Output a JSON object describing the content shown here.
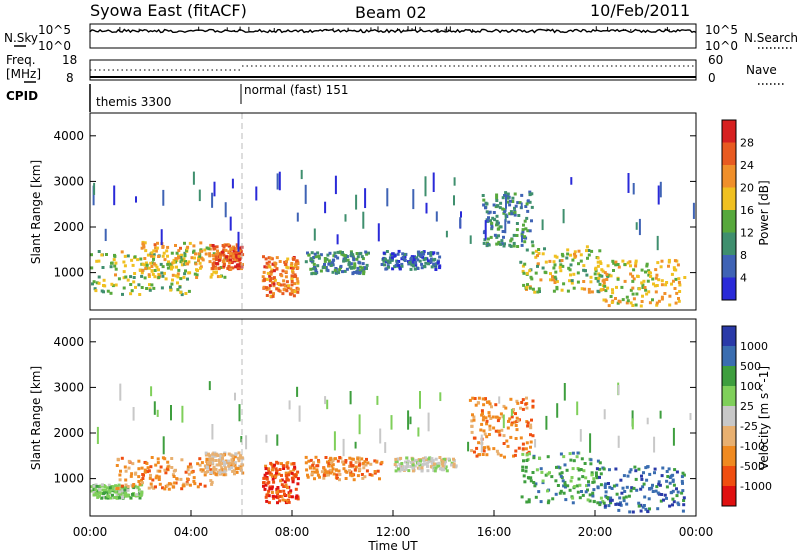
{
  "header": {
    "station": "Syowa East (fitACF)",
    "beam": "Beam 02",
    "date": "10/Feb/2011"
  },
  "noise_panel": {
    "left_label": "N.Sky",
    "right_label": "N.Search",
    "left_ticks": [
      "10^5",
      "10^0"
    ],
    "right_ticks": [
      "10^5",
      "10^0"
    ]
  },
  "freq_panel": {
    "left_label_1": "Freq.",
    "left_label_2": "[MHz]",
    "left_ticks": [
      "18",
      "8"
    ],
    "right_label": "Nave",
    "right_ticks": [
      "60",
      "0"
    ]
  },
  "cpid_panel": {
    "label": "CPID",
    "segments": [
      {
        "name": "themis 3300",
        "start_hour": 0
      },
      {
        "name": "normal (fast) 151",
        "start_hour": 6
      }
    ]
  },
  "colors": {
    "power_scale": [
      "#2a2ad8",
      "#3f63b5",
      "#3f8f6e",
      "#57a83c",
      "#f0c020",
      "#f08f2a",
      "#e85a20",
      "#d62020"
    ],
    "velocity_scale": [
      "#e01010",
      "#f04e10",
      "#f08a20",
      "#e8b070",
      "#c8c8c8",
      "#7fcf5a",
      "#3e9e3e",
      "#3a6db0",
      "#2a3aa8"
    ]
  },
  "chart_data": [
    {
      "type": "heatmap",
      "panel": "power",
      "ylabel": "Slant Range [km]",
      "ylim": [
        180,
        4500
      ],
      "yticks": [
        "1000",
        "2000",
        "3000",
        "4000"
      ],
      "xlim_hours": [
        0,
        24
      ],
      "colorbar_label": "Power [dB]",
      "colorbar_ticks": [
        "4",
        "8",
        "12",
        "16",
        "20",
        "24",
        "28"
      ],
      "colorbar_range": [
        0,
        30
      ],
      "regions": [
        {
          "hours": [
            0.0,
            3.9
          ],
          "range_km": [
            550,
            1500
          ],
          "level": 14
        },
        {
          "hours": [
            2.0,
            5.3
          ],
          "range_km": [
            900,
            1700
          ],
          "level": 18
        },
        {
          "hours": [
            4.8,
            6.0
          ],
          "range_km": [
            1100,
            1650
          ],
          "level": 24
        },
        {
          "hours": [
            6.8,
            8.2
          ],
          "range_km": [
            500,
            1400
          ],
          "level": 22
        },
        {
          "hours": [
            8.5,
            11.0
          ],
          "range_km": [
            1000,
            1500
          ],
          "level": 9
        },
        {
          "hours": [
            11.5,
            13.8
          ],
          "range_km": [
            1100,
            1500
          ],
          "level": 6
        },
        {
          "hours": [
            15.5,
            17.5
          ],
          "range_km": [
            1600,
            2800
          ],
          "level": 9
        },
        {
          "hours": [
            17.0,
            20.5
          ],
          "range_km": [
            600,
            1600
          ],
          "level": 15
        },
        {
          "hours": [
            20.0,
            23.5
          ],
          "range_km": [
            300,
            1300
          ],
          "level": 17
        }
      ]
    },
    {
      "type": "heatmap",
      "panel": "velocity",
      "ylabel": "Slant Range [km]",
      "ylim": [
        180,
        4500
      ],
      "yticks": [
        "1000",
        "2000",
        "3000",
        "4000"
      ],
      "xlabel": "Time UT",
      "xticks": [
        "00:00",
        "04:00",
        "08:00",
        "12:00",
        "16:00",
        "20:00",
        "00:00"
      ],
      "xlim_hours": [
        0,
        24
      ],
      "colorbar_label": "Velocity [m s^-1]",
      "colorbar_ticks": [
        "1000",
        "500",
        "100",
        "25",
        "-25",
        "-100",
        "-500",
        "-1000"
      ],
      "regions": [
        {
          "hours": [
            0.0,
            2.0
          ],
          "range_km": [
            600,
            900
          ],
          "level": "100"
        },
        {
          "hours": [
            1.0,
            4.8
          ],
          "range_km": [
            800,
            1500
          ],
          "level": "-100"
        },
        {
          "hours": [
            4.5,
            6.0
          ],
          "range_km": [
            1100,
            1600
          ],
          "level": "-25"
        },
        {
          "hours": [
            6.8,
            8.2
          ],
          "range_km": [
            500,
            1400
          ],
          "level": "-500"
        },
        {
          "hours": [
            8.5,
            11.5
          ],
          "range_km": [
            1000,
            1500
          ],
          "level": "-100"
        },
        {
          "hours": [
            12.0,
            14.5
          ],
          "range_km": [
            1200,
            1500
          ],
          "level": "0"
        },
        {
          "hours": [
            15.0,
            17.5
          ],
          "range_km": [
            1500,
            2800
          ],
          "level": "-100"
        },
        {
          "hours": [
            17.0,
            20.5
          ],
          "range_km": [
            500,
            1600
          ],
          "level": "500"
        },
        {
          "hours": [
            20.0,
            23.5
          ],
          "range_km": [
            300,
            1300
          ],
          "level": "1000"
        }
      ]
    }
  ]
}
